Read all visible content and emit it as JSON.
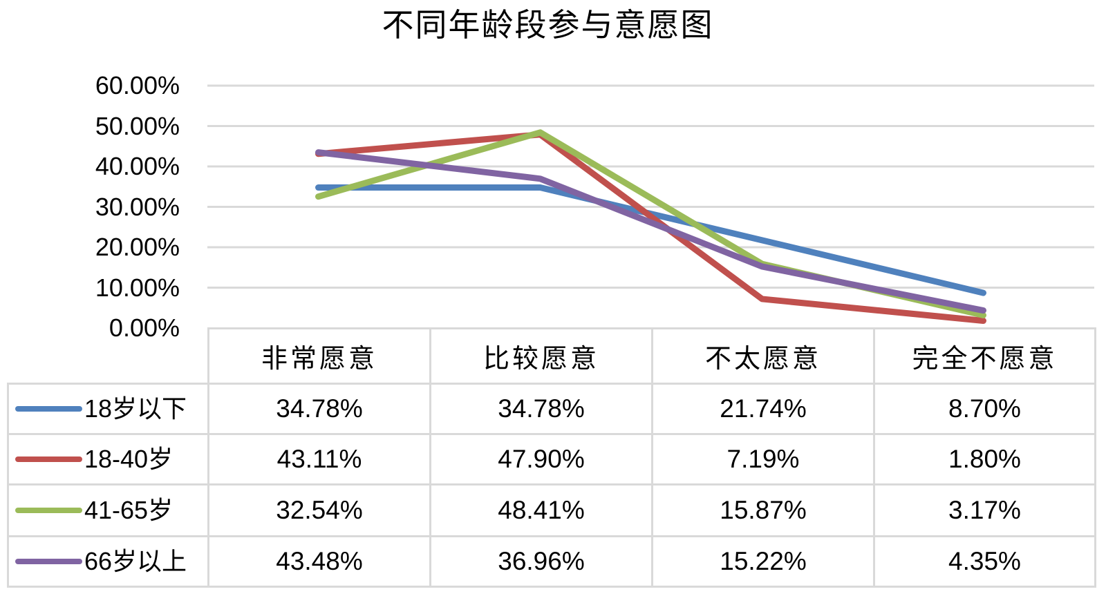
{
  "chart_data": {
    "type": "line",
    "title": "不同年龄段参与意愿图",
    "categories": [
      "非常愿意",
      "比较愿意",
      "不太愿意",
      "完全不愿意"
    ],
    "series": [
      {
        "name": "18岁以下",
        "color": "#4F81BD",
        "values": [
          34.78,
          34.78,
          21.74,
          8.7
        ],
        "display": [
          "34.78%",
          "34.78%",
          "21.74%",
          "8.70%"
        ]
      },
      {
        "name": "18-40岁",
        "color": "#C0504D",
        "values": [
          43.11,
          47.9,
          7.19,
          1.8
        ],
        "display": [
          "43.11%",
          "47.90%",
          "7.19%",
          "1.80%"
        ]
      },
      {
        "name": "41-65岁",
        "color": "#9BBB59",
        "values": [
          32.54,
          48.41,
          15.87,
          3.17
        ],
        "display": [
          "32.54%",
          "48.41%",
          "15.87%",
          "3.17%"
        ]
      },
      {
        "name": "66岁以上",
        "color": "#8064A2",
        "values": [
          43.48,
          36.96,
          15.22,
          4.35
        ],
        "display": [
          "43.48%",
          "36.96%",
          "15.22%",
          "4.35%"
        ]
      }
    ],
    "y_axis": {
      "min": 0,
      "max": 60,
      "step": 10,
      "tick_labels": [
        "60.00%",
        "50.00%",
        "40.00%",
        "30.00%",
        "20.00%",
        "10.00%",
        "0.00%"
      ]
    },
    "grid": true,
    "gridline_color": "#D9D9D9",
    "line_width": 9,
    "legend_position": "data-table-left",
    "data_table_shown": true
  }
}
